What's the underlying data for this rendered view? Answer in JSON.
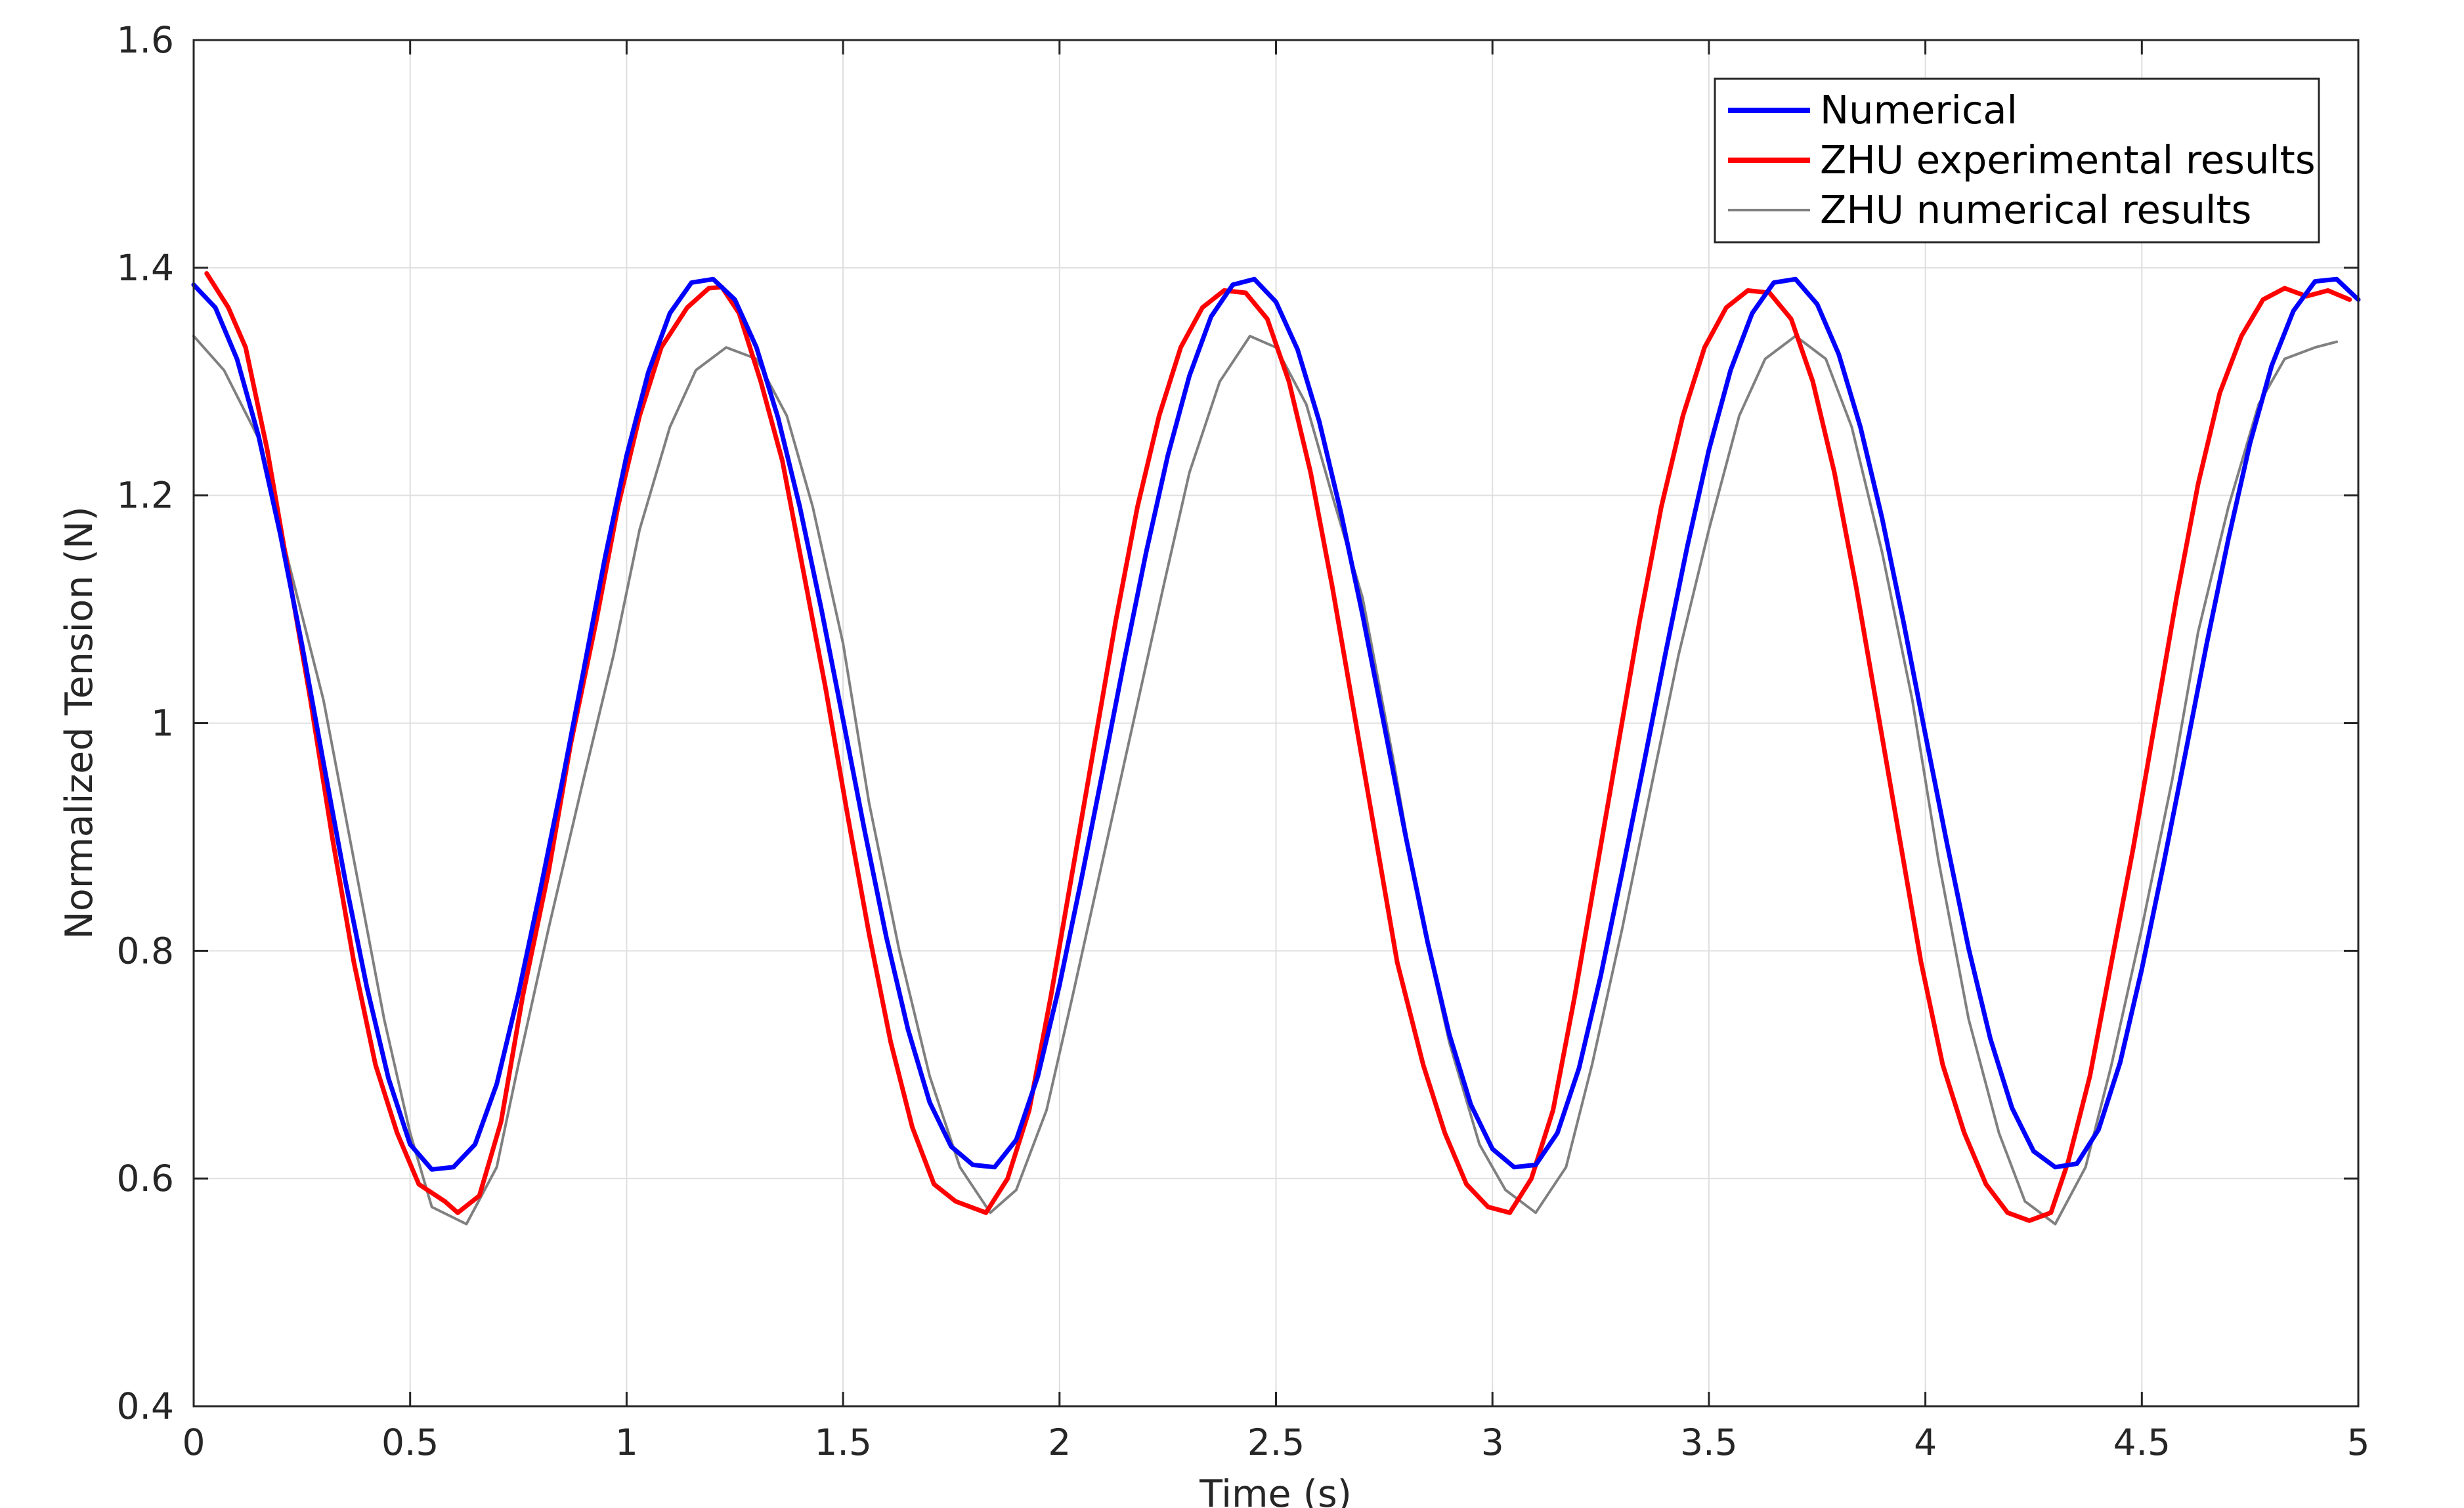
{
  "chart_data": {
    "type": "line",
    "title": "",
    "xlabel": "Time (s)",
    "ylabel": "Normalized Tension (N)",
    "xlim": [
      0,
      5
    ],
    "ylim": [
      0.4,
      1.6
    ],
    "x_ticks": [
      0,
      0.5,
      1,
      1.5,
      2,
      2.5,
      3,
      3.5,
      4,
      4.5,
      5
    ],
    "x_tick_labels": [
      "0",
      "0.5",
      "1",
      "1.5",
      "2",
      "2.5",
      "3",
      "3.5",
      "4",
      "4.5",
      "5"
    ],
    "y_ticks": [
      0.4,
      0.6,
      0.8,
      1.0,
      1.2,
      1.4,
      1.6
    ],
    "y_tick_labels": [
      "0.4",
      "0.6",
      "0.8",
      "1",
      "1.2",
      "1.4",
      "1.6"
    ],
    "grid": true,
    "legend_position": "top-right",
    "series": [
      {
        "name": "Numerical",
        "color": "#0000ff",
        "x": [
          0,
          0.05,
          0.1,
          0.15,
          0.2,
          0.25,
          0.3,
          0.35,
          0.4,
          0.45,
          0.5,
          0.55,
          0.6,
          0.65,
          0.7,
          0.75,
          0.8,
          0.85,
          0.9,
          0.95,
          1.0,
          1.05,
          1.1,
          1.15,
          1.2,
          1.25,
          1.3,
          1.35,
          1.4,
          1.45,
          1.5,
          1.55,
          1.6,
          1.65,
          1.7,
          1.75,
          1.8,
          1.85,
          1.9,
          1.95,
          2.0,
          2.05,
          2.1,
          2.15,
          2.2,
          2.25,
          2.3,
          2.35,
          2.4,
          2.45,
          2.5,
          2.55,
          2.6,
          2.65,
          2.7,
          2.75,
          2.8,
          2.85,
          2.9,
          2.95,
          3.0,
          3.05,
          3.1,
          3.15,
          3.2,
          3.25,
          3.3,
          3.35,
          3.4,
          3.45,
          3.5,
          3.55,
          3.6,
          3.65,
          3.7,
          3.75,
          3.8,
          3.85,
          3.9,
          3.95,
          4.0,
          4.05,
          4.1,
          4.15,
          4.2,
          4.25,
          4.3,
          4.35,
          4.4,
          4.45,
          4.5,
          4.55,
          4.6,
          4.65,
          4.7,
          4.75,
          4.8,
          4.85,
          4.9,
          4.95,
          5.0
        ],
        "values": [
          1.385,
          1.365,
          1.32,
          1.252,
          1.166,
          1.069,
          0.965,
          0.862,
          0.768,
          0.688,
          0.63,
          0.608,
          0.61,
          0.63,
          0.683,
          0.762,
          0.852,
          0.946,
          1.045,
          1.145,
          1.235,
          1.308,
          1.36,
          1.387,
          1.39,
          1.372,
          1.33,
          1.268,
          1.19,
          1.1,
          1.003,
          0.905,
          0.812,
          0.731,
          0.667,
          0.628,
          0.612,
          0.61,
          0.634,
          0.69,
          0.77,
          0.862,
          0.958,
          1.056,
          1.15,
          1.235,
          1.305,
          1.357,
          1.385,
          1.39,
          1.37,
          1.328,
          1.265,
          1.185,
          1.095,
          0.998,
          0.9,
          0.808,
          0.727,
          0.665,
          0.626,
          0.61,
          0.612,
          0.64,
          0.697,
          0.778,
          0.87,
          0.965,
          1.062,
          1.155,
          1.24,
          1.31,
          1.36,
          1.387,
          1.39,
          1.368,
          1.324,
          1.26,
          1.18,
          1.088,
          0.99,
          0.894,
          0.802,
          0.723,
          0.662,
          0.624,
          0.61,
          0.613,
          0.643,
          0.702,
          0.784,
          0.876,
          0.972,
          1.07,
          1.162,
          1.246,
          1.314,
          1.362,
          1.388,
          1.39,
          1.372
        ]
      },
      {
        "name": "ZHU experimental results",
        "color": "#ff0000",
        "x": [
          0.03,
          0.08,
          0.12,
          0.17,
          0.22,
          0.27,
          0.32,
          0.37,
          0.42,
          0.47,
          0.52,
          0.58,
          0.61,
          0.66,
          0.71,
          0.76,
          0.82,
          0.87,
          0.93,
          0.98,
          1.03,
          1.08,
          1.14,
          1.19,
          1.22,
          1.26,
          1.31,
          1.36,
          1.41,
          1.46,
          1.51,
          1.56,
          1.61,
          1.66,
          1.71,
          1.76,
          1.83,
          1.88,
          1.93,
          1.98,
          2.03,
          2.08,
          2.13,
          2.18,
          2.23,
          2.28,
          2.33,
          2.38,
          2.43,
          2.48,
          2.53,
          2.58,
          2.63,
          2.68,
          2.73,
          2.78,
          2.84,
          2.89,
          2.94,
          2.99,
          3.04,
          3.09,
          3.14,
          3.19,
          3.24,
          3.29,
          3.34,
          3.39,
          3.44,
          3.49,
          3.54,
          3.59,
          3.64,
          3.69,
          3.74,
          3.79,
          3.84,
          3.89,
          3.94,
          3.99,
          4.04,
          4.09,
          4.14,
          4.19,
          4.24,
          4.29,
          4.33,
          4.38,
          4.43,
          4.48,
          4.53,
          4.58,
          4.63,
          4.68,
          4.73,
          4.78,
          4.83,
          4.88,
          4.93,
          4.98
        ],
        "values": [
          1.395,
          1.365,
          1.33,
          1.24,
          1.13,
          1.02,
          0.9,
          0.79,
          0.7,
          0.64,
          0.595,
          0.58,
          0.57,
          0.585,
          0.65,
          0.76,
          0.87,
          0.98,
          1.09,
          1.19,
          1.27,
          1.33,
          1.365,
          1.382,
          1.383,
          1.36,
          1.3,
          1.23,
          1.13,
          1.03,
          0.92,
          0.815,
          0.72,
          0.645,
          0.595,
          0.58,
          0.57,
          0.6,
          0.66,
          0.76,
          0.87,
          0.98,
          1.09,
          1.19,
          1.27,
          1.33,
          1.365,
          1.38,
          1.378,
          1.355,
          1.3,
          1.22,
          1.12,
          1.01,
          0.9,
          0.79,
          0.7,
          0.64,
          0.595,
          0.575,
          0.57,
          0.6,
          0.66,
          0.76,
          0.87,
          0.98,
          1.09,
          1.19,
          1.27,
          1.33,
          1.365,
          1.38,
          1.378,
          1.355,
          1.3,
          1.22,
          1.12,
          1.01,
          0.9,
          0.79,
          0.7,
          0.64,
          0.595,
          0.57,
          0.563,
          0.57,
          0.615,
          0.69,
          0.79,
          0.89,
          1.0,
          1.11,
          1.21,
          1.29,
          1.34,
          1.372,
          1.382,
          1.375,
          1.38,
          1.372
        ]
      },
      {
        "name": "ZHU numerical results",
        "color": "#808080",
        "x": [
          0,
          0.07,
          0.15,
          0.22,
          0.3,
          0.37,
          0.44,
          0.5,
          0.55,
          0.63,
          0.7,
          0.75,
          0.82,
          0.9,
          0.97,
          1.03,
          1.1,
          1.16,
          1.23,
          1.3,
          1.37,
          1.43,
          1.5,
          1.56,
          1.63,
          1.7,
          1.77,
          1.84,
          1.9,
          1.97,
          2.03,
          2.1,
          2.17,
          2.24,
          2.3,
          2.37,
          2.44,
          2.5,
          2.57,
          2.63,
          2.7,
          2.77,
          2.83,
          2.9,
          2.97,
          3.03,
          3.1,
          3.17,
          3.23,
          3.3,
          3.37,
          3.43,
          3.5,
          3.57,
          3.63,
          3.7,
          3.77,
          3.83,
          3.9,
          3.97,
          4.03,
          4.1,
          4.17,
          4.23,
          4.3,
          4.37,
          4.43,
          4.5,
          4.57,
          4.63,
          4.7,
          4.77,
          4.83,
          4.9,
          4.95
        ],
        "values": [
          1.34,
          1.31,
          1.25,
          1.14,
          1.02,
          0.88,
          0.74,
          0.64,
          0.575,
          0.56,
          0.61,
          0.7,
          0.82,
          0.95,
          1.06,
          1.17,
          1.26,
          1.31,
          1.33,
          1.32,
          1.27,
          1.19,
          1.07,
          0.93,
          0.8,
          0.69,
          0.61,
          0.57,
          0.59,
          0.66,
          0.76,
          0.88,
          1.0,
          1.12,
          1.22,
          1.3,
          1.34,
          1.33,
          1.28,
          1.2,
          1.11,
          0.97,
          0.84,
          0.72,
          0.63,
          0.59,
          0.57,
          0.61,
          0.7,
          0.82,
          0.95,
          1.06,
          1.17,
          1.27,
          1.32,
          1.34,
          1.32,
          1.26,
          1.15,
          1.02,
          0.88,
          0.74,
          0.64,
          0.58,
          0.56,
          0.61,
          0.7,
          0.82,
          0.95,
          1.08,
          1.19,
          1.28,
          1.32,
          1.33,
          1.335
        ]
      }
    ]
  }
}
